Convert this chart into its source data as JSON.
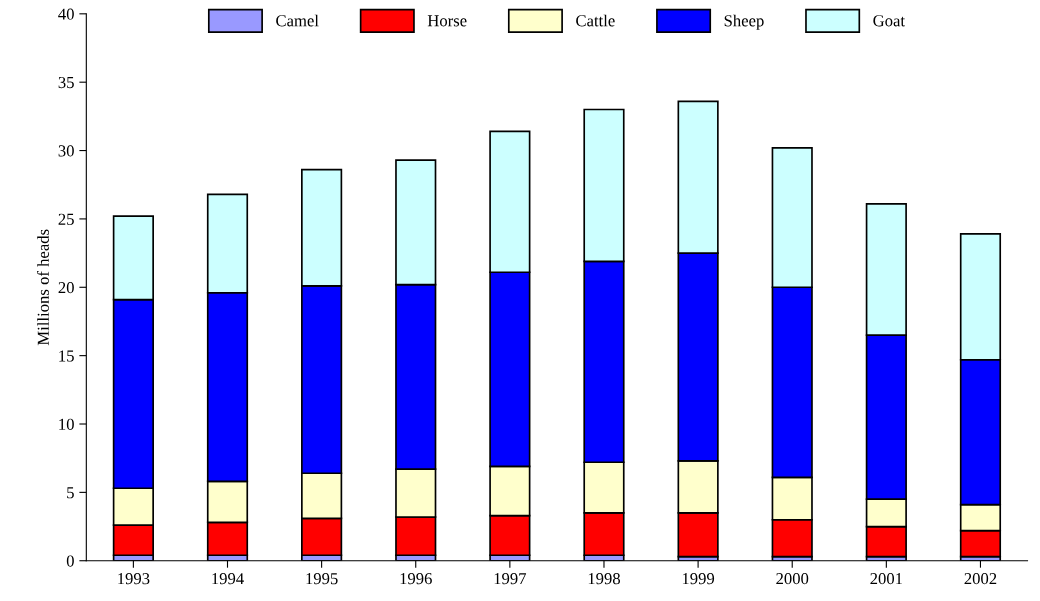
{
  "chart_data": {
    "type": "bar",
    "stacked": true,
    "ylabel": "Millions of heads",
    "categories": [
      "1993",
      "1994",
      "1995",
      "1996",
      "1997",
      "1998",
      "1999",
      "2000",
      "2001",
      "2002"
    ],
    "series": [
      {
        "name": "Camel",
        "color": "#9999ff",
        "values": [
          0.4,
          0.4,
          0.4,
          0.4,
          0.4,
          0.4,
          0.3,
          0.3,
          0.3,
          0.3
        ]
      },
      {
        "name": "Horse",
        "color": "#ff0000",
        "values": [
          2.2,
          2.4,
          2.7,
          2.8,
          2.9,
          3.1,
          3.2,
          2.7,
          2.2,
          1.9
        ]
      },
      {
        "name": "Cattle",
        "color": "#ffffcc",
        "values": [
          2.7,
          3.0,
          3.3,
          3.5,
          3.6,
          3.7,
          3.8,
          3.1,
          2.0,
          1.9
        ]
      },
      {
        "name": "Sheep",
        "color": "#0000ff",
        "values": [
          13.8,
          13.8,
          13.7,
          13.5,
          14.2,
          14.7,
          15.2,
          13.9,
          12.0,
          10.6
        ]
      },
      {
        "name": "Goat",
        "color": "#ccffff",
        "values": [
          6.1,
          7.2,
          8.5,
          9.1,
          10.3,
          11.1,
          11.1,
          10.2,
          9.6,
          9.2
        ]
      }
    ],
    "ylim": [
      0,
      40
    ],
    "yticks": [
      0,
      5,
      10,
      15,
      20,
      25,
      30,
      35,
      40
    ],
    "grid": false,
    "legend": "top"
  }
}
